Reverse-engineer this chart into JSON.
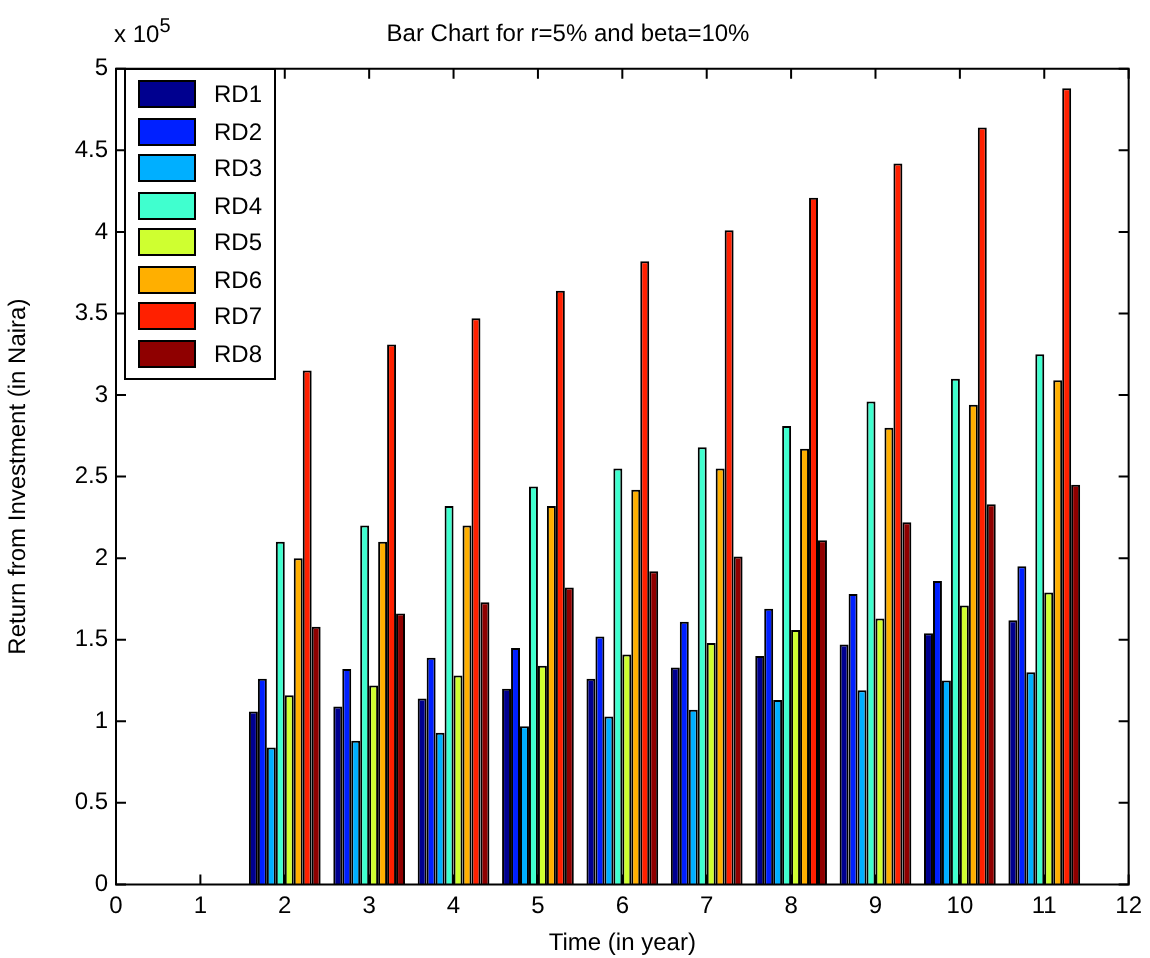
{
  "chart_data": {
    "type": "bar",
    "title": "Bar Chart for r=5% and beta=10%",
    "xlabel": "Time (in year)",
    "ylabel": "Return from Investment (in Naira)",
    "annotations": [
      "x 10$^{5}$"
    ],
    "x": [
      1,
      2,
      3,
      4,
      5,
      6,
      7,
      8,
      9,
      10,
      11
    ],
    "xlim": [
      0,
      12
    ],
    "xticks": [
      0,
      1,
      2,
      3,
      4,
      5,
      6,
      7,
      8,
      9,
      10,
      11,
      12
    ],
    "ylim": [
      0,
      5
    ],
    "yticks": [
      0,
      0.5,
      1,
      1.5,
      2,
      2.5,
      3,
      3.5,
      4,
      4.5,
      5
    ],
    "legend": "top left",
    "grid": false,
    "series": [
      {
        "name": "RD1",
        "color": "#00008f",
        "values": [
          0,
          1.06,
          1.09,
          1.14,
          1.2,
          1.26,
          1.33,
          1.4,
          1.47,
          1.54,
          1.62
        ]
      },
      {
        "name": "RD2",
        "color": "#0020ff",
        "values": [
          0,
          1.26,
          1.32,
          1.39,
          1.45,
          1.52,
          1.61,
          1.69,
          1.78,
          1.86,
          1.95
        ]
      },
      {
        "name": "RD3",
        "color": "#00afff",
        "values": [
          0,
          0.84,
          0.88,
          0.93,
          0.97,
          1.03,
          1.07,
          1.13,
          1.19,
          1.25,
          1.3
        ]
      },
      {
        "name": "RD4",
        "color": "#40ffcf",
        "values": [
          0,
          2.1,
          2.2,
          2.32,
          2.44,
          2.55,
          2.68,
          2.81,
          2.96,
          3.1,
          3.25
        ]
      },
      {
        "name": "RD5",
        "color": "#cfff30",
        "values": [
          0,
          1.16,
          1.22,
          1.28,
          1.34,
          1.41,
          1.48,
          1.56,
          1.63,
          1.71,
          1.79
        ]
      },
      {
        "name": "RD6",
        "color": "#ffaf00",
        "values": [
          0,
          2.0,
          2.1,
          2.2,
          2.32,
          2.42,
          2.55,
          2.67,
          2.8,
          2.94,
          3.09
        ]
      },
      {
        "name": "RD7",
        "color": "#ff2000",
        "values": [
          0,
          3.15,
          3.31,
          3.47,
          3.64,
          3.82,
          4.01,
          4.21,
          4.42,
          4.64,
          4.88
        ]
      },
      {
        "name": "RD8",
        "color": "#8f0000",
        "values": [
          0,
          1.58,
          1.66,
          1.73,
          1.82,
          1.92,
          2.01,
          2.11,
          2.22,
          2.33,
          2.45
        ]
      }
    ]
  }
}
